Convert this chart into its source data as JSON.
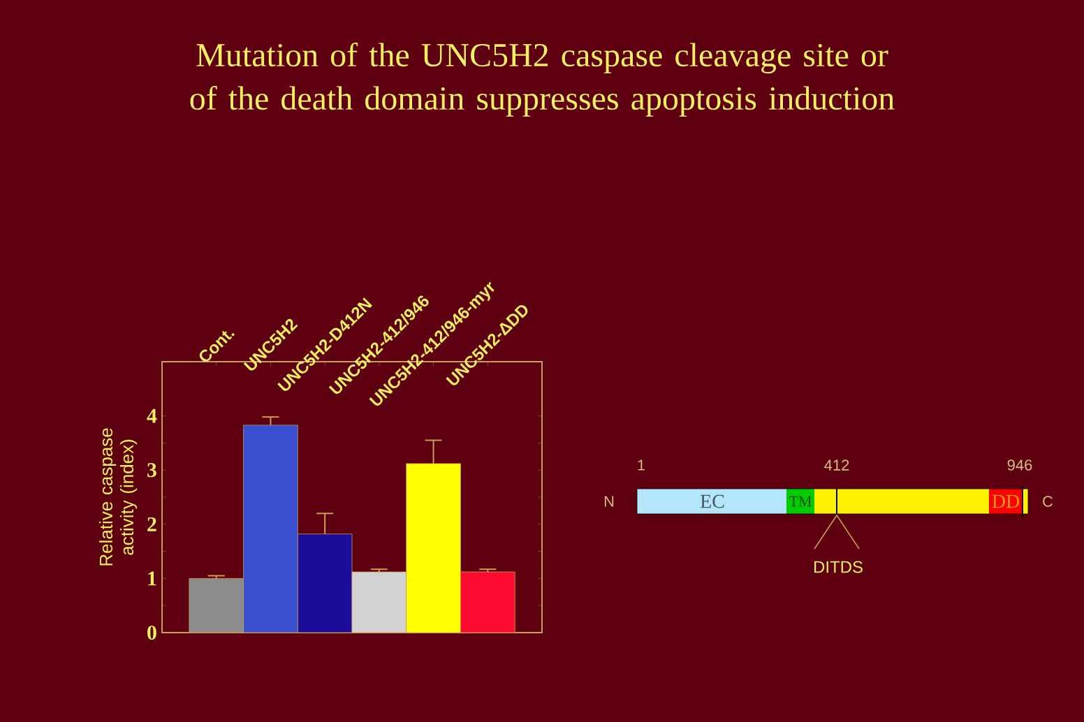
{
  "chart_data": {
    "type": "bar",
    "title": "Mutation of the UNC5H2 caspase cleavage site or of the death domain suppresses apoptosis induction",
    "ylabel": "Relative caspase activity (index)",
    "categories": [
      "Cont.",
      "UNC5H2",
      "UNC5H2-D412N",
      "UNC5H2-412/946",
      "UNC5H2-412/946-myr",
      "UNC5H2-ΔDD"
    ],
    "values": [
      1.0,
      3.83,
      1.82,
      1.12,
      3.12,
      1.12
    ],
    "errors": [
      [
        1.0,
        1.05
      ],
      [
        3.83,
        3.98
      ],
      [
        1.82,
        2.2
      ],
      [
        1.12,
        1.17
      ],
      [
        3.12,
        3.55
      ],
      [
        1.12,
        1.17
      ]
    ],
    "colors": [
      "#8c8c8c",
      "#3a50d0",
      "#1c0c9c",
      "#d2d2d2",
      "#ffff00",
      "#ff0a30"
    ],
    "ylim": [
      0,
      5
    ],
    "yticks": [
      0,
      1,
      2,
      3,
      4
    ],
    "grid": false,
    "annotations": [
      "1",
      "412",
      "946",
      "N",
      "C",
      "EC",
      "TM",
      "DD",
      "DITDS"
    ]
  }
}
